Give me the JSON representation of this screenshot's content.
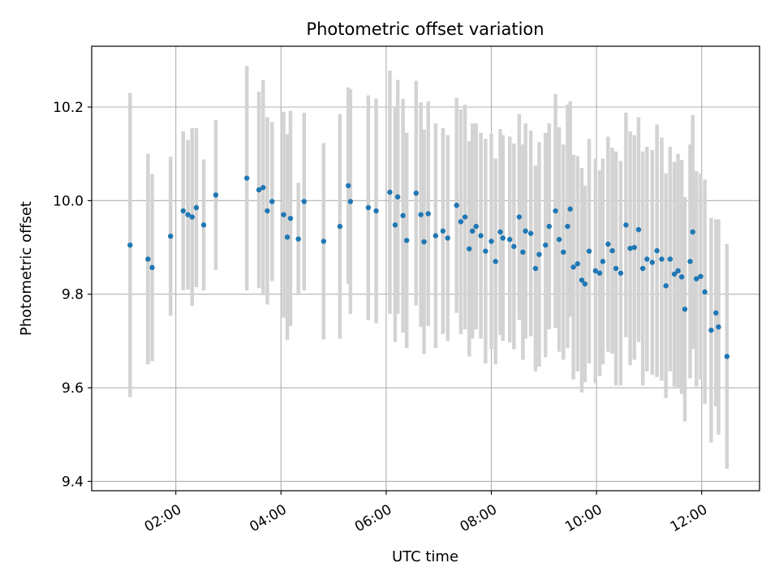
{
  "chart_data": {
    "type": "scatter",
    "title": "Photometric offset variation",
    "xlabel": "UTC time",
    "ylabel": "Photometric offset",
    "x_unit": "hours (UTC)",
    "xlim": [
      0.4,
      13.1
    ],
    "ylim": [
      9.38,
      10.33
    ],
    "xticks": [
      {
        "value": 2,
        "label": "02:00"
      },
      {
        "value": 4,
        "label": "04:00"
      },
      {
        "value": 6,
        "label": "06:00"
      },
      {
        "value": 8,
        "label": "08:00"
      },
      {
        "value": 10,
        "label": "10:00"
      },
      {
        "value": 12,
        "label": "12:00"
      }
    ],
    "yticks": [
      {
        "value": 9.4,
        "label": "9.4"
      },
      {
        "value": 9.6,
        "label": "9.6"
      },
      {
        "value": 9.8,
        "label": "9.8"
      },
      {
        "value": 10.0,
        "label": "10.0"
      },
      {
        "value": 10.2,
        "label": "10.2"
      }
    ],
    "grid": true,
    "point_color": "#1f77b4",
    "errorbar_color": "#d3d3d3",
    "points": [
      [
        1.13,
        9.905,
        0.325
      ],
      [
        1.47,
        9.875,
        0.225
      ],
      [
        1.55,
        9.857,
        0.2
      ],
      [
        1.9,
        9.924,
        0.17
      ],
      [
        2.14,
        9.978,
        0.17
      ],
      [
        2.23,
        9.97,
        0.16
      ],
      [
        2.31,
        9.965,
        0.19
      ],
      [
        2.39,
        9.985,
        0.17
      ],
      [
        2.53,
        9.948,
        0.14
      ],
      [
        2.76,
        10.012,
        0.16
      ],
      [
        3.35,
        10.048,
        0.24
      ],
      [
        3.58,
        10.023,
        0.21
      ],
      [
        3.66,
        10.028,
        0.23
      ],
      [
        3.74,
        9.978,
        0.2
      ],
      [
        3.83,
        9.998,
        0.17
      ],
      [
        4.05,
        9.97,
        0.22
      ],
      [
        4.12,
        9.922,
        0.22
      ],
      [
        4.18,
        9.962,
        0.23
      ],
      [
        4.33,
        9.918,
        0.12
      ],
      [
        4.44,
        9.998,
        0.19
      ],
      [
        4.81,
        9.913,
        0.21
      ],
      [
        5.12,
        9.945,
        0.24
      ],
      [
        5.28,
        10.032,
        0.21
      ],
      [
        5.32,
        9.998,
        0.24
      ],
      [
        5.66,
        9.985,
        0.24
      ],
      [
        5.81,
        9.978,
        0.24
      ],
      [
        6.07,
        10.018,
        0.26
      ],
      [
        6.17,
        9.948,
        0.25
      ],
      [
        6.22,
        10.008,
        0.25
      ],
      [
        6.32,
        9.968,
        0.25
      ],
      [
        6.39,
        9.915,
        0.23
      ],
      [
        6.57,
        10.016,
        0.24
      ],
      [
        6.66,
        9.97,
        0.24
      ],
      [
        6.72,
        9.912,
        0.24
      ],
      [
        6.8,
        9.972,
        0.24
      ],
      [
        6.94,
        9.925,
        0.24
      ],
      [
        7.08,
        9.935,
        0.22
      ],
      [
        7.17,
        9.92,
        0.22
      ],
      [
        7.34,
        9.99,
        0.23
      ],
      [
        7.42,
        9.955,
        0.24
      ],
      [
        7.5,
        9.965,
        0.24
      ],
      [
        7.58,
        9.897,
        0.23
      ],
      [
        7.64,
        9.935,
        0.23
      ],
      [
        7.71,
        9.945,
        0.22
      ],
      [
        7.8,
        9.925,
        0.22
      ],
      [
        7.89,
        9.892,
        0.24
      ],
      [
        8.0,
        9.913,
        0.23
      ],
      [
        8.08,
        9.87,
        0.22
      ],
      [
        8.17,
        9.933,
        0.22
      ],
      [
        8.22,
        9.92,
        0.22
      ],
      [
        8.35,
        9.917,
        0.22
      ],
      [
        8.43,
        9.902,
        0.22
      ],
      [
        8.53,
        9.965,
        0.22
      ],
      [
        8.6,
        9.89,
        0.23
      ],
      [
        8.65,
        9.935,
        0.23
      ],
      [
        8.75,
        9.93,
        0.22
      ],
      [
        8.84,
        9.855,
        0.22
      ],
      [
        8.91,
        9.885,
        0.24
      ],
      [
        9.03,
        9.905,
        0.24
      ],
      [
        9.1,
        9.945,
        0.22
      ],
      [
        9.22,
        9.978,
        0.25
      ],
      [
        9.29,
        9.917,
        0.24
      ],
      [
        9.37,
        9.89,
        0.23
      ],
      [
        9.45,
        9.945,
        0.26
      ],
      [
        9.5,
        9.982,
        0.23
      ],
      [
        9.56,
        9.858,
        0.24
      ],
      [
        9.64,
        9.865,
        0.23
      ],
      [
        9.72,
        9.83,
        0.24
      ],
      [
        9.78,
        9.822,
        0.21
      ],
      [
        9.86,
        9.892,
        0.24
      ],
      [
        9.98,
        9.85,
        0.24
      ],
      [
        10.06,
        9.845,
        0.22
      ],
      [
        10.12,
        9.87,
        0.22
      ],
      [
        10.22,
        9.907,
        0.23
      ],
      [
        10.3,
        9.893,
        0.22
      ],
      [
        10.37,
        9.855,
        0.25
      ],
      [
        10.46,
        9.845,
        0.24
      ],
      [
        10.56,
        9.948,
        0.24
      ],
      [
        10.64,
        9.898,
        0.25
      ],
      [
        10.72,
        9.9,
        0.24
      ],
      [
        10.8,
        9.938,
        0.24
      ],
      [
        10.88,
        9.855,
        0.25
      ],
      [
        10.96,
        9.875,
        0.24
      ],
      [
        11.06,
        9.868,
        0.24
      ],
      [
        11.15,
        9.893,
        0.27
      ],
      [
        11.24,
        9.875,
        0.26
      ],
      [
        11.32,
        9.818,
        0.24
      ],
      [
        11.4,
        9.875,
        0.24
      ],
      [
        11.48,
        9.843,
        0.24
      ],
      [
        11.55,
        9.85,
        0.25
      ],
      [
        11.62,
        9.837,
        0.25
      ],
      [
        11.68,
        9.768,
        0.24
      ],
      [
        11.78,
        9.87,
        0.25
      ],
      [
        11.83,
        9.933,
        0.25
      ],
      [
        11.9,
        9.833,
        0.23
      ],
      [
        11.98,
        9.838,
        0.22
      ],
      [
        12.06,
        9.805,
        0.24
      ],
      [
        12.18,
        9.723,
        0.24
      ],
      [
        12.27,
        9.76,
        0.2
      ],
      [
        12.32,
        9.73,
        0.23
      ],
      [
        12.48,
        9.667,
        0.24
      ]
    ]
  }
}
